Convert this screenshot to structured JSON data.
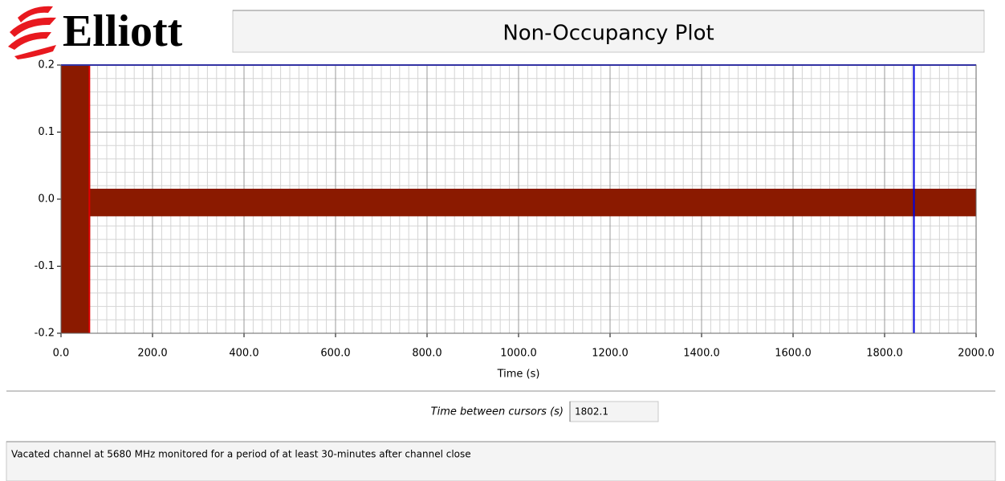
{
  "logo": "Elliott",
  "chart_data": {
    "type": "band",
    "title": "Non-Occupancy Plot",
    "x_label": "Time (s)",
    "xlim": [
      0,
      2000
    ],
    "ylim": [
      -0.2,
      0.2
    ],
    "xticks": [
      {
        "value": 0,
        "label": "0.0"
      },
      {
        "value": 200,
        "label": "200.0"
      },
      {
        "value": 400,
        "label": "400.0"
      },
      {
        "value": 600,
        "label": "600.0"
      },
      {
        "value": 800,
        "label": "800.0"
      },
      {
        "value": 1000,
        "label": "1000.0"
      },
      {
        "value": 1200,
        "label": "1200.0"
      },
      {
        "value": 1400,
        "label": "1400.0"
      },
      {
        "value": 1600,
        "label": "1600.0"
      },
      {
        "value": 1800,
        "label": "1800.0"
      },
      {
        "value": 2000,
        "label": "2000.0"
      }
    ],
    "yticks": [
      0.2,
      0.1,
      {
        "value": 0,
        "label": "0.0"
      },
      -0.1,
      -0.2
    ],
    "grid": true,
    "minor_grid": {
      "x": 20,
      "y": 0.02
    },
    "series": [
      {
        "color": "#8b1a00",
        "x": [
          0,
          62,
          63,
          2000
        ],
        "high": [
          0.2,
          0.2,
          0.015,
          0.015
        ],
        "low": [
          -0.2,
          -0.2,
          -0.025,
          -0.025
        ]
      }
    ],
    "cursors": [
      {
        "color": "#e00000",
        "x": 62,
        "y": 0.2
      },
      {
        "color": "#0000e0",
        "x": 1864.1,
        "y": 0.2
      }
    ]
  },
  "cursor_readout": {
    "label": "Time between cursors (s)",
    "value": "1802.1"
  },
  "note": "Vacated channel at 5680 MHz monitored for a period of at least 30-minutes after channel close"
}
